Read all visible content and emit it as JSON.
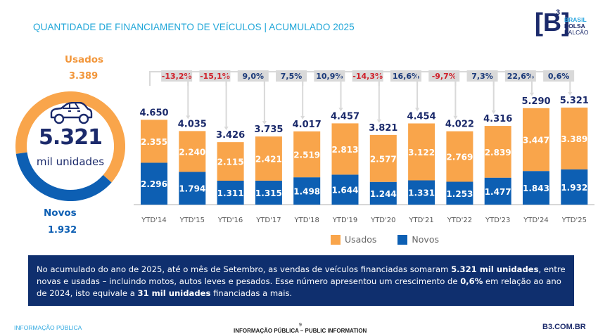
{
  "header": {
    "title": "QUANTIDADE DE FINANCIAMENTO DE VEÍCULOS | ACUMULADO 2025",
    "logo": {
      "mark": "[B]",
      "superscript": "3",
      "line1": "BRASIL",
      "line2": "BOLSA",
      "line3": "BALCÃO"
    }
  },
  "summary": {
    "icon": "car-icon",
    "total": "5.321",
    "unit": "mil unidades",
    "usados_label": "Usados",
    "usados_value": "3.389",
    "novos_label": "Novos",
    "novos_value": "1.932",
    "usados_share": 0.637,
    "novos_share": 0.363
  },
  "colors": {
    "usados": "#f9a54b",
    "novos": "#0d5fb3",
    "total_label": "#1b2a6b",
    "negative_change": "#d0202a",
    "positive_change": "#1b3a7a",
    "change_box": "#d9d9d9"
  },
  "chart_data": {
    "type": "bar",
    "stacked": true,
    "title": "Quantidade de financiamento de veículos | Acumulado 2025",
    "xlabel": "",
    "ylabel": "",
    "units": "mil unidades",
    "categories": [
      "YTD'14",
      "YTD'15",
      "YTD'16",
      "YTD'17",
      "YTD'18",
      "YTD'19",
      "YTD'20",
      "YTD'21",
      "YTD'22",
      "YTD'23",
      "YTD'24",
      "YTD'25"
    ],
    "series": [
      {
        "name": "Novos",
        "values": [
          2296,
          1794,
          1311,
          1315,
          1498,
          1644,
          1244,
          1331,
          1253,
          1477,
          1843,
          1932
        ],
        "labels": [
          "2.296",
          "1.794",
          "1.311",
          "1.315",
          "1.498",
          "1.644",
          "1.244",
          "1.331",
          "1.253",
          "1.477",
          "1.843",
          "1.932"
        ]
      },
      {
        "name": "Usados",
        "values": [
          2355,
          2240,
          2115,
          2421,
          2519,
          2813,
          2577,
          3122,
          2769,
          2839,
          3447,
          3389
        ],
        "labels": [
          "2.355",
          "2.240",
          "2.115",
          "2.421",
          "2.519",
          "2.813",
          "2.577",
          "3.122",
          "2.769",
          "2.839",
          "3.447",
          "3.389"
        ]
      }
    ],
    "totals": [
      4650,
      4035,
      3426,
      3735,
      4017,
      4457,
      3821,
      4454,
      4022,
      4316,
      5290,
      5321
    ],
    "total_labels": [
      "4.650",
      "4.035",
      "3.426",
      "3.735",
      "4.017",
      "4.457",
      "3.821",
      "4.454",
      "4.022",
      "4.316",
      "5.290",
      "5.321"
    ],
    "yoy_changes": [
      -13.2,
      -15.1,
      9.0,
      7.5,
      10.9,
      -14.3,
      16.6,
      -9.7,
      7.3,
      22.6,
      0.6
    ],
    "yoy_labels": [
      "-13,2%",
      "-15,1%",
      "9,0%",
      "7,5%",
      "10,9%",
      "-14,3%",
      "16,6%",
      "-9,7%",
      "7,3%",
      "22,6%",
      "0,6%"
    ],
    "ylim": [
      0,
      5321
    ],
    "grid": false,
    "legend": {
      "position": "bottom",
      "entries": [
        "Usados",
        "Novos"
      ]
    }
  },
  "note": {
    "p1": "No acumulado do ano de 2025, até o mês de Setembro, as vendas de veículos financiadas somaram ",
    "b1": "5.321 mil unidades",
    "p2": ", entre novas e usadas – incluindo motos, autos leves e pesados. Esse número apresentou um crescimento de ",
    "b2": "0,6%",
    "p3": " em relação ao ano de 2024, isto equivale a ",
    "b3": "31 mil unidades",
    "p4": " financiadas a mais."
  },
  "footer": {
    "left": "INFORMAÇÃO PÚBLICA",
    "center": "INFORMAÇÃO PÚBLICA – PUBLIC INFORMATION",
    "page": "9",
    "right": "B3.COM.BR"
  }
}
